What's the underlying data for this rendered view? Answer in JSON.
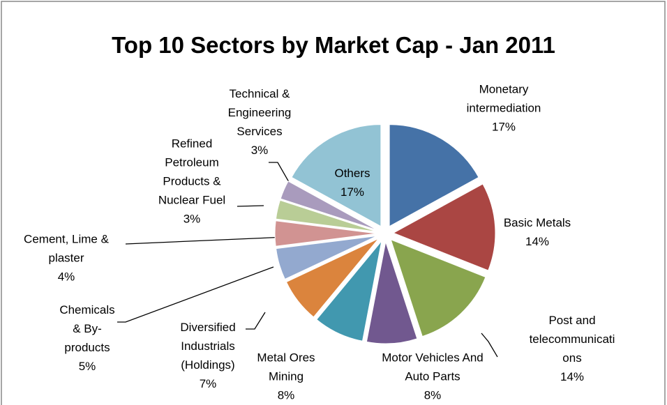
{
  "chart_data": {
    "type": "pie",
    "title": "Top 10 Sectors by Market Cap - Jan 2011",
    "categories": [
      "Monetary intermediation",
      "Basic Metals",
      "Post and telecommunications",
      "Motor Vehicles And Auto Parts",
      "Metal Ores Mining",
      "Diversified Industrials (Holdings)",
      "Chemicals & By-products",
      "Cement, Lime & plaster",
      "Refined Petroleum Products & Nuclear Fuel",
      "Technical & Engineering Services",
      "Others"
    ],
    "values": [
      17,
      14,
      14,
      8,
      8,
      7,
      5,
      4,
      3,
      3,
      17
    ],
    "value_labels": [
      "17%",
      "14%",
      "14%",
      "8%",
      "8%",
      "7%",
      "5%",
      "4%",
      "3%",
      "3%",
      "17%"
    ],
    "colors": [
      "#4572a7",
      "#aa4643",
      "#89a54e",
      "#71588f",
      "#4198af",
      "#db843d",
      "#93a9cf",
      "#d19392",
      "#b9cd96",
      "#a99bbd",
      "#92c3d4"
    ]
  }
}
